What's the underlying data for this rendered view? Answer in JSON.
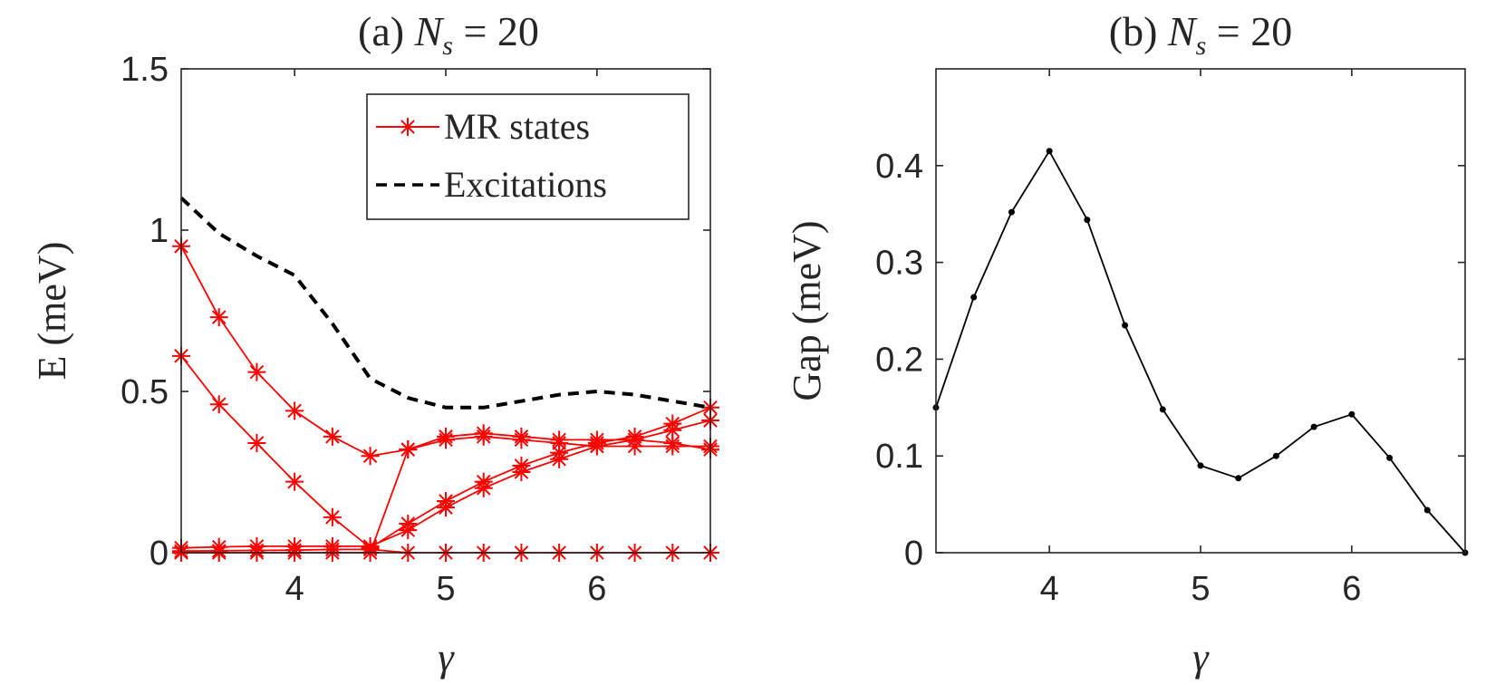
{
  "chart_data": [
    {
      "type": "line",
      "panel": "a",
      "title": "(a) N_s = 20",
      "title_prefix": "(a) ",
      "title_var": "N",
      "title_sub": "s",
      "title_suffix": " = 20",
      "xlabel": "γ",
      "ylabel": "E (meV)",
      "xlim": [
        3.25,
        6.75
      ],
      "ylim": [
        0,
        1.5
      ],
      "xticks": [
        4,
        5,
        6
      ],
      "yticks": [
        0,
        0.5,
        1,
        1.5
      ],
      "xtick_labels": [
        "4",
        "5",
        "6"
      ],
      "ytick_labels": [
        "0",
        "0.5",
        "1",
        "1.5"
      ],
      "legend": {
        "position": "top-right",
        "entries": [
          "MR states",
          "Excitations"
        ]
      },
      "colors": {
        "mr": "#ff0000",
        "excitations": "#000000"
      },
      "x": [
        3.25,
        3.5,
        3.75,
        4.0,
        4.25,
        4.5,
        4.75,
        5.0,
        5.25,
        5.5,
        5.75,
        6.0,
        6.25,
        6.5,
        6.75
      ],
      "series": [
        {
          "name": "MR states",
          "style": "red-star",
          "values": [
            0.95,
            0.73,
            0.56,
            0.44,
            0.36,
            0.3,
            0.32,
            0.35,
            0.36,
            0.35,
            0.34,
            0.33,
            0.33,
            0.33,
            0.33
          ]
        },
        {
          "name": "MR states",
          "style": "red-star",
          "values": [
            0.61,
            0.46,
            0.34,
            0.22,
            0.11,
            0.015,
            0.09,
            0.16,
            0.22,
            0.27,
            0.31,
            0.34,
            0.36,
            0.4,
            0.45
          ]
        },
        {
          "name": "MR states",
          "style": "red-star",
          "values": [
            0.015,
            0.018,
            0.02,
            0.02,
            0.02,
            0.02,
            0.07,
            0.14,
            0.2,
            0.25,
            0.29,
            0.33,
            0.35,
            0.38,
            0.41
          ]
        },
        {
          "name": "MR states",
          "style": "red-star",
          "values": [
            0.005,
            0.006,
            0.007,
            0.008,
            0.01,
            0.01,
            0.0,
            0.0,
            0.0,
            0.0,
            0.0,
            0.0,
            0.0,
            0.0,
            0.0
          ]
        },
        {
          "name": "MR states",
          "style": "red-star",
          "values": [
            0.0,
            0.0,
            0.0,
            0.0,
            0.0,
            0.0,
            0.32,
            0.36,
            0.37,
            0.36,
            0.35,
            0.35,
            0.35,
            0.34,
            0.32
          ]
        },
        {
          "name": "Excitations",
          "style": "black-dashed",
          "values": [
            1.1,
            0.99,
            0.92,
            0.86,
            0.71,
            0.54,
            0.48,
            0.45,
            0.45,
            0.47,
            0.49,
            0.5,
            0.49,
            0.47,
            0.45
          ]
        }
      ]
    },
    {
      "type": "line",
      "panel": "b",
      "title": "(b) N_s = 20",
      "title_prefix": "(b) ",
      "title_var": "N",
      "title_sub": "s",
      "title_suffix": " = 20",
      "xlabel": "γ",
      "ylabel": "Gap (meV)",
      "xlim": [
        3.25,
        6.75
      ],
      "ylim": [
        0,
        0.5
      ],
      "xticks": [
        4,
        5,
        6
      ],
      "yticks": [
        0,
        0.1,
        0.2,
        0.3,
        0.4
      ],
      "xtick_labels": [
        "4",
        "5",
        "6"
      ],
      "ytick_labels": [
        "0",
        "0.1",
        "0.2",
        "0.3",
        "0.4"
      ],
      "colors": {
        "line": "#000000"
      },
      "x": [
        3.25,
        3.5,
        3.75,
        4.0,
        4.25,
        4.5,
        4.75,
        5.0,
        5.25,
        5.5,
        5.75,
        6.0,
        6.25,
        6.5,
        6.75
      ],
      "series": [
        {
          "name": "Gap",
          "style": "black-dot",
          "values": [
            0.15,
            0.264,
            0.352,
            0.415,
            0.344,
            0.235,
            0.148,
            0.09,
            0.077,
            0.1,
            0.13,
            0.143,
            0.098,
            0.044,
            0.0
          ]
        }
      ]
    }
  ]
}
